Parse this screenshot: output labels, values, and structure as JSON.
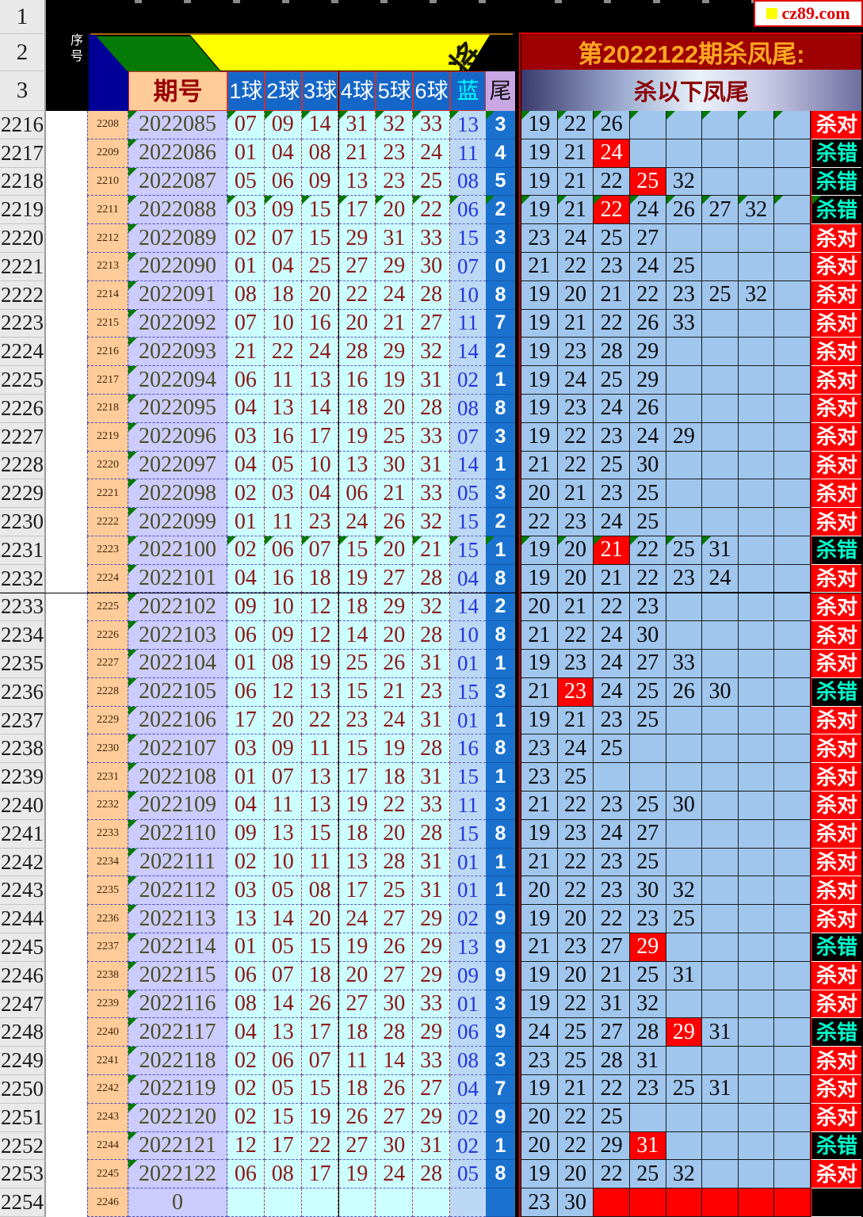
{
  "site": {
    "logo": "cz89.com"
  },
  "header": {
    "gutter_rows": [
      "1",
      "2",
      "3"
    ],
    "xuhao": "序号",
    "qihao": "期号",
    "balls": [
      "1球",
      "2球",
      "3球",
      "4球",
      "5球",
      "6球"
    ],
    "blue": "蓝",
    "tail": "尾",
    "banner_glyph": "将",
    "title": "第2022122期杀凤尾:",
    "subtitle": "杀以下凤尾"
  },
  "results": {
    "correct": "杀对",
    "wrong": "杀错",
    "black": ""
  },
  "colors": {
    "tail_col": "#1B72CE",
    "ball_bg": "#CCFFFF",
    "period_bg": "#CCCCFF",
    "seq_bg": "#FFCC99",
    "kill_bg": "#A0C6EE",
    "hit_red": "#FE0000",
    "wrong_text": "#00FFCC",
    "title_bg": "#9E0000",
    "title_text": "#FFA820"
  },
  "rows": [
    {
      "gutter": "2216",
      "seq": "2208",
      "period": "2022085",
      "balls": [
        "07",
        "09",
        "14",
        "31",
        "32",
        "33"
      ],
      "blue": "13",
      "tail": "3",
      "kills": [
        "19",
        "22",
        "26"
      ],
      "hit": -1,
      "result": "correct",
      "left_marks": "a",
      "right_marks": 8,
      "result_mark": false,
      "red_fill": false
    },
    {
      "gutter": "2217",
      "seq": "2209",
      "period": "2022086",
      "balls": [
        "01",
        "04",
        "08",
        "21",
        "23",
        "24"
      ],
      "blue": "11",
      "tail": "4",
      "kills": [
        "19",
        "21",
        "24"
      ],
      "hit": 2,
      "result": "wrong",
      "left_marks": "p",
      "right_marks": 0,
      "result_mark": false,
      "red_fill": false
    },
    {
      "gutter": "2218",
      "seq": "2210",
      "period": "2022087",
      "balls": [
        "05",
        "06",
        "09",
        "13",
        "23",
        "25"
      ],
      "blue": "08",
      "tail": "5",
      "kills": [
        "19",
        "21",
        "22",
        "25",
        "32"
      ],
      "hit": 3,
      "result": "wrong",
      "left_marks": "p",
      "right_marks": 0,
      "result_mark": false,
      "red_fill": false
    },
    {
      "gutter": "2219",
      "seq": "2211",
      "period": "2022088",
      "balls": [
        "03",
        "09",
        "15",
        "17",
        "20",
        "22"
      ],
      "blue": "06",
      "tail": "2",
      "kills": [
        "19",
        "21",
        "22",
        "24",
        "26",
        "27",
        "32"
      ],
      "hit": 2,
      "result": "wrong",
      "left_marks": "a",
      "right_marks": 8,
      "result_mark": true,
      "red_fill": false
    },
    {
      "gutter": "2220",
      "seq": "2212",
      "period": "2022089",
      "balls": [
        "02",
        "07",
        "15",
        "29",
        "31",
        "33"
      ],
      "blue": "15",
      "tail": "3",
      "kills": [
        "23",
        "24",
        "25",
        "27"
      ],
      "hit": -1,
      "result": "correct",
      "left_marks": "p",
      "right_marks": 0,
      "result_mark": false,
      "red_fill": false
    },
    {
      "gutter": "2221",
      "seq": "2213",
      "period": "2022090",
      "balls": [
        "01",
        "04",
        "25",
        "27",
        "29",
        "30"
      ],
      "blue": "07",
      "tail": "0",
      "kills": [
        "21",
        "22",
        "23",
        "24",
        "25"
      ],
      "hit": -1,
      "result": "correct",
      "left_marks": "p",
      "right_marks": 0,
      "result_mark": false,
      "red_fill": false
    },
    {
      "gutter": "2222",
      "seq": "2214",
      "period": "2022091",
      "balls": [
        "08",
        "18",
        "20",
        "22",
        "24",
        "28"
      ],
      "blue": "10",
      "tail": "8",
      "kills": [
        "19",
        "20",
        "21",
        "22",
        "23",
        "25",
        "32"
      ],
      "hit": -1,
      "result": "correct",
      "left_marks": "p",
      "right_marks": 0,
      "result_mark": false,
      "red_fill": false
    },
    {
      "gutter": "2223",
      "seq": "2215",
      "period": "2022092",
      "balls": [
        "07",
        "10",
        "16",
        "20",
        "21",
        "27"
      ],
      "blue": "11",
      "tail": "7",
      "kills": [
        "19",
        "21",
        "22",
        "26",
        "33"
      ],
      "hit": -1,
      "result": "correct",
      "left_marks": "p",
      "right_marks": 0,
      "result_mark": false,
      "red_fill": false
    },
    {
      "gutter": "2224",
      "seq": "2216",
      "period": "2022093",
      "balls": [
        "21",
        "22",
        "24",
        "28",
        "29",
        "32"
      ],
      "blue": "14",
      "tail": "2",
      "kills": [
        "19",
        "23",
        "28",
        "29"
      ],
      "hit": -1,
      "result": "correct",
      "left_marks": "p",
      "right_marks": 0,
      "result_mark": false,
      "red_fill": false
    },
    {
      "gutter": "2225",
      "seq": "2217",
      "period": "2022094",
      "balls": [
        "06",
        "11",
        "13",
        "16",
        "19",
        "31"
      ],
      "blue": "02",
      "tail": "1",
      "kills": [
        "19",
        "24",
        "25",
        "29"
      ],
      "hit": -1,
      "result": "correct",
      "left_marks": "p",
      "right_marks": 0,
      "result_mark": false,
      "red_fill": false
    },
    {
      "gutter": "2226",
      "seq": "2218",
      "period": "2022095",
      "balls": [
        "04",
        "13",
        "14",
        "18",
        "20",
        "28"
      ],
      "blue": "08",
      "tail": "8",
      "kills": [
        "19",
        "23",
        "24",
        "26"
      ],
      "hit": -1,
      "result": "correct",
      "left_marks": "p",
      "right_marks": 0,
      "result_mark": false,
      "red_fill": false
    },
    {
      "gutter": "2227",
      "seq": "2219",
      "period": "2022096",
      "balls": [
        "03",
        "16",
        "17",
        "19",
        "25",
        "33"
      ],
      "blue": "07",
      "tail": "3",
      "kills": [
        "19",
        "22",
        "23",
        "24",
        "29"
      ],
      "hit": -1,
      "result": "correct",
      "left_marks": "p",
      "right_marks": 0,
      "result_mark": false,
      "red_fill": false
    },
    {
      "gutter": "2228",
      "seq": "2220",
      "period": "2022097",
      "balls": [
        "04",
        "05",
        "10",
        "13",
        "30",
        "31"
      ],
      "blue": "14",
      "tail": "1",
      "kills": [
        "21",
        "22",
        "25",
        "30"
      ],
      "hit": -1,
      "result": "correct",
      "left_marks": "p",
      "right_marks": 0,
      "result_mark": false,
      "red_fill": false
    },
    {
      "gutter": "2229",
      "seq": "2221",
      "period": "2022098",
      "balls": [
        "02",
        "03",
        "04",
        "06",
        "21",
        "33"
      ],
      "blue": "05",
      "tail": "3",
      "kills": [
        "20",
        "21",
        "23",
        "25"
      ],
      "hit": -1,
      "result": "correct",
      "left_marks": "p",
      "right_marks": 0,
      "result_mark": false,
      "red_fill": false
    },
    {
      "gutter": "2230",
      "seq": "2222",
      "period": "2022099",
      "balls": [
        "01",
        "11",
        "23",
        "24",
        "26",
        "32"
      ],
      "blue": "15",
      "tail": "2",
      "kills": [
        "22",
        "23",
        "24",
        "25"
      ],
      "hit": -1,
      "result": "correct",
      "left_marks": "p",
      "right_marks": 0,
      "result_mark": false,
      "red_fill": false
    },
    {
      "gutter": "2231",
      "seq": "2223",
      "period": "2022100",
      "balls": [
        "02",
        "06",
        "07",
        "15",
        "20",
        "21"
      ],
      "blue": "15",
      "tail": "1",
      "kills": [
        "19",
        "20",
        "21",
        "22",
        "25",
        "31"
      ],
      "hit": 2,
      "result": "wrong",
      "left_marks": "a",
      "right_marks": 6,
      "result_mark": false,
      "red_fill": false
    },
    {
      "gutter": "2232",
      "seq": "2224",
      "period": "2022101",
      "balls": [
        "04",
        "16",
        "18",
        "19",
        "27",
        "28"
      ],
      "blue": "04",
      "tail": "8",
      "kills": [
        "19",
        "20",
        "21",
        "22",
        "23",
        "24"
      ],
      "hit": -1,
      "result": "correct",
      "left_marks": "p",
      "right_marks": 0,
      "result_mark": false,
      "red_fill": false
    },
    {
      "gutter": "2233",
      "seq": "2225",
      "period": "2022102",
      "balls": [
        "09",
        "10",
        "12",
        "18",
        "29",
        "32"
      ],
      "blue": "14",
      "tail": "2",
      "kills": [
        "20",
        "21",
        "22",
        "23"
      ],
      "hit": -1,
      "result": "correct",
      "left_marks": "p",
      "right_marks": 0,
      "result_mark": false,
      "red_fill": false
    },
    {
      "gutter": "2234",
      "seq": "2226",
      "period": "2022103",
      "balls": [
        "06",
        "09",
        "12",
        "14",
        "20",
        "28"
      ],
      "blue": "10",
      "tail": "8",
      "kills": [
        "21",
        "22",
        "24",
        "30"
      ],
      "hit": -1,
      "result": "correct",
      "left_marks": "p",
      "right_marks": 0,
      "result_mark": false,
      "red_fill": false
    },
    {
      "gutter": "2235",
      "seq": "2227",
      "period": "2022104",
      "balls": [
        "01",
        "08",
        "19",
        "25",
        "26",
        "31"
      ],
      "blue": "01",
      "tail": "1",
      "kills": [
        "19",
        "23",
        "24",
        "27",
        "33"
      ],
      "hit": -1,
      "result": "correct",
      "left_marks": "p",
      "right_marks": 0,
      "result_mark": false,
      "red_fill": false
    },
    {
      "gutter": "2236",
      "seq": "2228",
      "period": "2022105",
      "balls": [
        "06",
        "12",
        "13",
        "15",
        "21",
        "23"
      ],
      "blue": "15",
      "tail": "3",
      "kills": [
        "21",
        "23",
        "24",
        "25",
        "26",
        "30"
      ],
      "hit": 1,
      "result": "wrong",
      "left_marks": "p",
      "right_marks": 0,
      "result_mark": false,
      "red_fill": false
    },
    {
      "gutter": "2237",
      "seq": "2229",
      "period": "2022106",
      "balls": [
        "17",
        "20",
        "22",
        "23",
        "24",
        "31"
      ],
      "blue": "01",
      "tail": "1",
      "kills": [
        "19",
        "21",
        "23",
        "25"
      ],
      "hit": -1,
      "result": "correct",
      "left_marks": "p",
      "right_marks": 0,
      "result_mark": false,
      "red_fill": false
    },
    {
      "gutter": "2238",
      "seq": "2230",
      "period": "2022107",
      "balls": [
        "03",
        "09",
        "11",
        "15",
        "19",
        "28"
      ],
      "blue": "16",
      "tail": "8",
      "kills": [
        "23",
        "24",
        "25"
      ],
      "hit": -1,
      "result": "correct",
      "left_marks": "p",
      "right_marks": 0,
      "result_mark": false,
      "red_fill": false
    },
    {
      "gutter": "2239",
      "seq": "2231",
      "period": "2022108",
      "balls": [
        "01",
        "07",
        "13",
        "17",
        "18",
        "31"
      ],
      "blue": "15",
      "tail": "1",
      "kills": [
        "23",
        "25"
      ],
      "hit": -1,
      "result": "correct",
      "left_marks": "p",
      "right_marks": 0,
      "result_mark": false,
      "red_fill": false
    },
    {
      "gutter": "2240",
      "seq": "2232",
      "period": "2022109",
      "balls": [
        "04",
        "11",
        "13",
        "19",
        "22",
        "33"
      ],
      "blue": "11",
      "tail": "3",
      "kills": [
        "21",
        "22",
        "23",
        "25",
        "30"
      ],
      "hit": -1,
      "result": "correct",
      "left_marks": "p",
      "right_marks": 0,
      "result_mark": false,
      "red_fill": false
    },
    {
      "gutter": "2241",
      "seq": "2233",
      "period": "2022110",
      "balls": [
        "09",
        "13",
        "15",
        "18",
        "20",
        "28"
      ],
      "blue": "15",
      "tail": "8",
      "kills": [
        "19",
        "23",
        "24",
        "27"
      ],
      "hit": -1,
      "result": "correct",
      "left_marks": "p",
      "right_marks": 0,
      "result_mark": false,
      "red_fill": false
    },
    {
      "gutter": "2242",
      "seq": "2234",
      "period": "2022111",
      "balls": [
        "02",
        "10",
        "11",
        "13",
        "28",
        "31"
      ],
      "blue": "01",
      "tail": "1",
      "kills": [
        "21",
        "22",
        "23",
        "25"
      ],
      "hit": -1,
      "result": "correct",
      "left_marks": "p",
      "right_marks": 0,
      "result_mark": false,
      "red_fill": false
    },
    {
      "gutter": "2243",
      "seq": "2235",
      "period": "2022112",
      "balls": [
        "03",
        "05",
        "08",
        "17",
        "25",
        "31"
      ],
      "blue": "01",
      "tail": "1",
      "kills": [
        "20",
        "22",
        "23",
        "30",
        "32"
      ],
      "hit": -1,
      "result": "correct",
      "left_marks": "p",
      "right_marks": 0,
      "result_mark": false,
      "red_fill": false
    },
    {
      "gutter": "2244",
      "seq": "2236",
      "period": "2022113",
      "balls": [
        "13",
        "14",
        "20",
        "24",
        "27",
        "29"
      ],
      "blue": "02",
      "tail": "9",
      "kills": [
        "19",
        "20",
        "22",
        "23",
        "25"
      ],
      "hit": -1,
      "result": "correct",
      "left_marks": "p",
      "right_marks": 0,
      "result_mark": false,
      "red_fill": false
    },
    {
      "gutter": "2245",
      "seq": "2237",
      "period": "2022114",
      "balls": [
        "01",
        "05",
        "15",
        "19",
        "26",
        "29"
      ],
      "blue": "13",
      "tail": "9",
      "kills": [
        "21",
        "23",
        "27",
        "29"
      ],
      "hit": 3,
      "result": "wrong",
      "left_marks": "p",
      "right_marks": 0,
      "result_mark": false,
      "red_fill": false
    },
    {
      "gutter": "2246",
      "seq": "2238",
      "period": "2022115",
      "balls": [
        "06",
        "07",
        "18",
        "20",
        "27",
        "29"
      ],
      "blue": "09",
      "tail": "9",
      "kills": [
        "19",
        "20",
        "21",
        "25",
        "31"
      ],
      "hit": -1,
      "result": "correct",
      "left_marks": "p",
      "right_marks": 0,
      "result_mark": false,
      "red_fill": false
    },
    {
      "gutter": "2247",
      "seq": "2239",
      "period": "2022116",
      "balls": [
        "08",
        "14",
        "26",
        "27",
        "30",
        "33"
      ],
      "blue": "01",
      "tail": "3",
      "kills": [
        "19",
        "22",
        "31",
        "32"
      ],
      "hit": -1,
      "result": "correct",
      "left_marks": "p",
      "right_marks": 0,
      "result_mark": false,
      "red_fill": false
    },
    {
      "gutter": "2248",
      "seq": "2240",
      "period": "2022117",
      "balls": [
        "04",
        "13",
        "17",
        "18",
        "28",
        "29"
      ],
      "blue": "06",
      "tail": "9",
      "kills": [
        "24",
        "25",
        "27",
        "28",
        "29",
        "31"
      ],
      "hit": 4,
      "result": "wrong",
      "left_marks": "p",
      "right_marks": 0,
      "result_mark": false,
      "red_fill": false
    },
    {
      "gutter": "2249",
      "seq": "2241",
      "period": "2022118",
      "balls": [
        "02",
        "06",
        "07",
        "11",
        "14",
        "33"
      ],
      "blue": "08",
      "tail": "3",
      "kills": [
        "23",
        "25",
        "28",
        "31"
      ],
      "hit": -1,
      "result": "correct",
      "left_marks": "p",
      "right_marks": 0,
      "result_mark": false,
      "red_fill": false
    },
    {
      "gutter": "2250",
      "seq": "2242",
      "period": "2022119",
      "balls": [
        "02",
        "05",
        "15",
        "18",
        "26",
        "27"
      ],
      "blue": "04",
      "tail": "7",
      "kills": [
        "19",
        "21",
        "22",
        "23",
        "25",
        "31"
      ],
      "hit": -1,
      "result": "correct",
      "left_marks": "p",
      "right_marks": 0,
      "result_mark": false,
      "red_fill": false
    },
    {
      "gutter": "2251",
      "seq": "2243",
      "period": "2022120",
      "balls": [
        "02",
        "15",
        "19",
        "26",
        "27",
        "29"
      ],
      "blue": "02",
      "tail": "9",
      "kills": [
        "20",
        "22",
        "25"
      ],
      "hit": -1,
      "result": "correct",
      "left_marks": "p",
      "right_marks": 0,
      "result_mark": false,
      "red_fill": false
    },
    {
      "gutter": "2252",
      "seq": "2244",
      "period": "2022121",
      "balls": [
        "12",
        "17",
        "22",
        "27",
        "30",
        "31"
      ],
      "blue": "02",
      "tail": "1",
      "kills": [
        "20",
        "22",
        "29",
        "31"
      ],
      "hit": 3,
      "result": "wrong",
      "left_marks": "p",
      "right_marks": 0,
      "result_mark": false,
      "red_fill": false
    },
    {
      "gutter": "2253",
      "seq": "2245",
      "period": "2022122",
      "balls": [
        "06",
        "08",
        "17",
        "19",
        "24",
        "28"
      ],
      "blue": "05",
      "tail": "8",
      "kills": [
        "19",
        "20",
        "22",
        "25",
        "32"
      ],
      "hit": -1,
      "result": "correct",
      "left_marks": "p",
      "right_marks": 0,
      "result_mark": false,
      "red_fill": false
    },
    {
      "gutter": "2254",
      "seq": "2246",
      "period": "0",
      "balls": [
        "",
        "",
        "",
        "",
        "",
        ""
      ],
      "blue": "",
      "tail": "",
      "kills": [
        "23",
        "30"
      ],
      "hit": -1,
      "result": "black",
      "left_marks": "n",
      "right_marks": 0,
      "result_mark": false,
      "red_fill": true
    }
  ]
}
